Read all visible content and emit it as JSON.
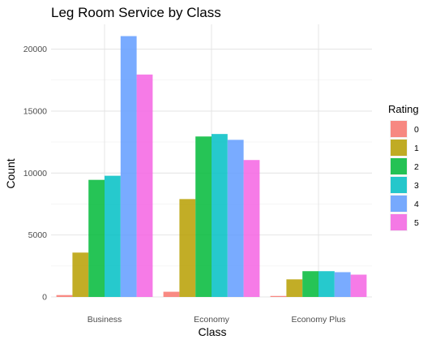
{
  "chart_data": {
    "type": "bar",
    "title": "Leg Room Service by Class",
    "xlabel": "Class",
    "ylabel": "Count",
    "categories": [
      "Business",
      "Economy",
      "Economy Plus"
    ],
    "ylim": [
      0,
      22000
    ],
    "yticks": [
      0,
      5000,
      10000,
      15000,
      20000
    ],
    "grid": true,
    "legend": {
      "title": "Rating",
      "position": "right"
    },
    "series": [
      {
        "name": "0",
        "color": "#F8766D",
        "values": [
          150,
          420,
          80
        ]
      },
      {
        "name": "1",
        "color": "#B79F00",
        "values": [
          3580,
          7900,
          1420
        ]
      },
      {
        "name": "2",
        "color": "#00BA38",
        "values": [
          9450,
          12950,
          2080
        ]
      },
      {
        "name": "3",
        "color": "#00BFC4",
        "values": [
          9780,
          13150,
          2080
        ]
      },
      {
        "name": "4",
        "color": "#619CFF",
        "values": [
          21050,
          12680,
          2000
        ]
      },
      {
        "name": "5",
        "color": "#F564E3",
        "values": [
          17950,
          11050,
          1800
        ]
      }
    ]
  }
}
